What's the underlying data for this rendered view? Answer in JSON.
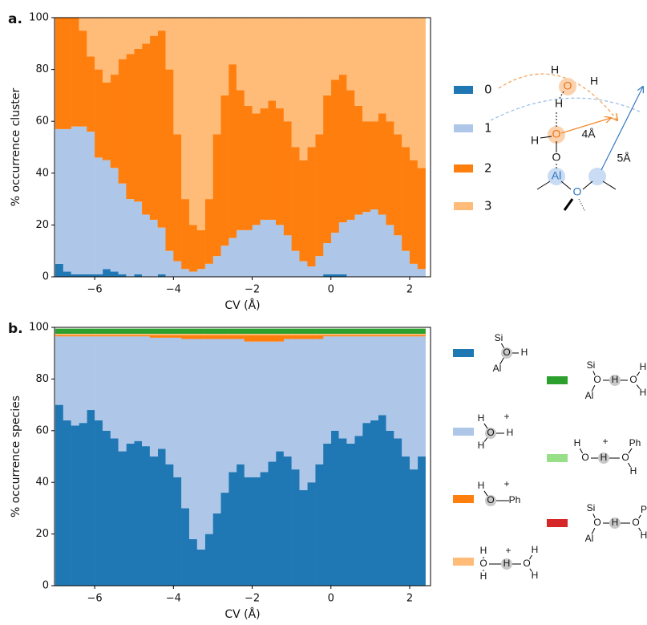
{
  "chart_data": [
    {
      "type": "stacked_bar",
      "panel_label": "a.",
      "ylabel": "% occurrence cluster",
      "xlabel": "CV (Å)",
      "x": [
        -6.9,
        -6.7,
        -6.5,
        -6.3,
        -6.1,
        -5.9,
        -5.7,
        -5.5,
        -5.3,
        -5.1,
        -4.9,
        -4.7,
        -4.5,
        -4.3,
        -4.1,
        -3.9,
        -3.7,
        -3.5,
        -3.3,
        -3.1,
        -2.9,
        -2.7,
        -2.5,
        -2.3,
        -2.1,
        -1.9,
        -1.7,
        -1.5,
        -1.3,
        -1.1,
        -0.9,
        -0.7,
        -0.5,
        -0.3,
        -0.1,
        0.1,
        0.3,
        0.5,
        0.7,
        0.9,
        1.1,
        1.3,
        1.5,
        1.7,
        1.9,
        2.1,
        2.3
      ],
      "xlim": [
        -7.02,
        2.53
      ],
      "ylim": [
        0,
        100
      ],
      "xticks": [
        {
          "value": -6,
          "label": "−6"
        },
        {
          "value": -4,
          "label": "−4"
        },
        {
          "value": -2,
          "label": "−2"
        },
        0,
        2
      ],
      "yticks": [
        0,
        20,
        40,
        60,
        80,
        100
      ],
      "series": [
        {
          "name": "0",
          "color": "#1f77b4",
          "values": [
            5,
            2,
            1,
            1,
            1,
            1,
            3,
            2,
            1,
            0,
            1,
            0,
            0,
            1,
            0,
            0,
            0,
            0,
            0,
            0,
            0,
            0,
            0,
            0,
            0,
            0,
            0,
            0,
            0,
            0,
            0,
            0,
            0,
            0,
            1,
            1,
            1,
            0,
            0,
            0,
            0,
            0,
            0,
            0,
            0,
            0,
            0
          ]
        },
        {
          "name": "1",
          "color": "#aec7e8",
          "values": [
            52,
            55,
            57,
            57,
            55,
            45,
            42,
            40,
            35,
            30,
            28,
            24,
            22,
            18,
            10,
            6,
            3,
            2,
            3,
            5,
            8,
            12,
            15,
            18,
            18,
            20,
            22,
            22,
            20,
            16,
            10,
            6,
            4,
            8,
            12,
            16,
            20,
            22,
            24,
            25,
            26,
            24,
            20,
            16,
            10,
            5,
            3
          ]
        },
        {
          "name": "2",
          "color": "#ff7f0e",
          "values": [
            43,
            43,
            42,
            37,
            29,
            34,
            30,
            36,
            48,
            56,
            59,
            66,
            71,
            76,
            70,
            49,
            27,
            18,
            15,
            25,
            47,
            58,
            67,
            54,
            48,
            43,
            43,
            46,
            45,
            44,
            40,
            39,
            46,
            47,
            57,
            59,
            57,
            50,
            42,
            35,
            34,
            39,
            40,
            39,
            40,
            40,
            39
          ]
        },
        {
          "name": "3",
          "color": "#ffbb78",
          "values": [
            0,
            0,
            0,
            5,
            15,
            20,
            25,
            22,
            16,
            14,
            12,
            10,
            7,
            5,
            20,
            45,
            70,
            80,
            82,
            70,
            45,
            30,
            18,
            28,
            34,
            37,
            35,
            32,
            35,
            40,
            50,
            55,
            50,
            45,
            30,
            24,
            22,
            28,
            34,
            40,
            40,
            37,
            40,
            45,
            50,
            55,
            58
          ]
        }
      ]
    },
    {
      "type": "stacked_bar",
      "panel_label": "b.",
      "ylabel": "% occurrence species",
      "xlabel": "CV (Å)",
      "x": [
        -6.9,
        -6.7,
        -6.5,
        -6.3,
        -6.1,
        -5.9,
        -5.7,
        -5.5,
        -5.3,
        -5.1,
        -4.9,
        -4.7,
        -4.5,
        -4.3,
        -4.1,
        -3.9,
        -3.7,
        -3.5,
        -3.3,
        -3.1,
        -2.9,
        -2.7,
        -2.5,
        -2.3,
        -2.1,
        -1.9,
        -1.7,
        -1.5,
        -1.3,
        -1.1,
        -0.9,
        -0.7,
        -0.5,
        -0.3,
        -0.1,
        0.1,
        0.3,
        0.5,
        0.7,
        0.9,
        1.1,
        1.3,
        1.5,
        1.7,
        1.9,
        2.1,
        2.3
      ],
      "xlim": [
        -7.02,
        2.53
      ],
      "ylim": [
        0,
        100
      ],
      "xticks": [
        {
          "value": -6,
          "label": "−6"
        },
        {
          "value": -4,
          "label": "−4"
        },
        {
          "value": -2,
          "label": "−2"
        },
        0,
        2
      ],
      "yticks": [
        0,
        20,
        40,
        60,
        80,
        100
      ],
      "series": [
        {
          "color": "#1f77b4",
          "structure": [
            "Si",
            "O",
            "H",
            "Al"
          ],
          "values": [
            70,
            64,
            62,
            63,
            68,
            64,
            60,
            57,
            52,
            55,
            56,
            54,
            50,
            53,
            47,
            42,
            30,
            18,
            14,
            20,
            28,
            36,
            44,
            47,
            42,
            42,
            44,
            48,
            52,
            50,
            45,
            37,
            40,
            47,
            55,
            60,
            57,
            55,
            58,
            63,
            64,
            66,
            60,
            57,
            50,
            45,
            50
          ]
        },
        {
          "color": "#aec7e8",
          "structure": [
            "H",
            "O",
            "H",
            "H",
            "+"
          ],
          "values": [
            26.5,
            32.5,
            34.5,
            33.5,
            28.5,
            32.5,
            36.5,
            39.5,
            44.5,
            41.5,
            40.5,
            42.5,
            46,
            43,
            49,
            54,
            65.5,
            77.5,
            81.5,
            75.5,
            67.5,
            59.5,
            51.5,
            48.5,
            52.5,
            52.5,
            50.5,
            46.5,
            42.5,
            45.5,
            50.5,
            58.5,
            55.5,
            48.5,
            41.5,
            36.5,
            39.5,
            41.5,
            38.5,
            33.5,
            32.5,
            30.5,
            36.5,
            39.5,
            46.5,
            51.5,
            46.5
          ]
        },
        {
          "color": "#ff7f0e",
          "structure": [
            "H",
            "O",
            "Ph",
            "+"
          ],
          "values": [
            0.5,
            0.5,
            0.5,
            0.5,
            0.5,
            0.5,
            0.5,
            0.5,
            0.5,
            0.5,
            0.5,
            0.5,
            1,
            1,
            1,
            1,
            1.5,
            1.5,
            1.5,
            1.5,
            1.5,
            1.5,
            1.5,
            1.5,
            2.5,
            2.5,
            2.5,
            2.5,
            2.5,
            1.5,
            1.5,
            1.5,
            1.5,
            1.5,
            0.5,
            0.5,
            0.5,
            0.5,
            0.5,
            0.5,
            0.5,
            0.5,
            0.5,
            0.5,
            0.5,
            0.5,
            0.5
          ]
        },
        {
          "color": "#ffbb78",
          "structure": [
            "H",
            "O",
            "H",
            "O",
            "H",
            "H",
            "+",
            "H"
          ],
          "values": [
            0.5,
            0.5,
            0.5,
            0.5,
            0.5,
            0.5,
            0.5,
            0.5,
            0.5,
            0.5,
            0.5,
            0.5,
            0.5,
            0.5,
            0.5,
            0.5,
            0.5,
            0.5,
            0.5,
            0.5,
            0.5,
            0.5,
            0.5,
            0.5,
            0.5,
            0.5,
            0.5,
            0.5,
            0.5,
            0.5,
            0.5,
            0.5,
            0.5,
            0.5,
            0.5,
            0.5,
            0.5,
            0.5,
            0.5,
            0.5,
            0.5,
            0.5,
            0.5,
            0.5,
            0.5,
            0.5,
            0.5
          ]
        },
        {
          "color": "#2ca02c",
          "structure": [
            "Si",
            "O",
            "H",
            "O",
            "H",
            "H",
            "Al"
          ],
          "values": [
            2,
            2,
            2,
            2,
            2,
            2,
            2,
            2,
            2,
            2,
            2,
            2,
            2,
            2,
            2,
            2,
            2,
            2,
            2,
            2,
            2,
            2,
            2,
            2,
            2,
            2,
            2,
            2,
            2,
            2,
            2,
            2,
            2,
            2,
            2,
            2,
            2,
            2,
            2,
            2,
            2,
            2,
            2,
            2,
            2,
            2,
            2
          ]
        },
        {
          "color": "#98df8a",
          "structure": [
            "H",
            "O",
            "H",
            "O",
            "Ph",
            "H",
            "+"
          ],
          "values": [
            0,
            0,
            0,
            0,
            0,
            0,
            0,
            0,
            0,
            0,
            0,
            0,
            0,
            0,
            0,
            0,
            0,
            0,
            0,
            0,
            0,
            0,
            0,
            0,
            0,
            0,
            0,
            0,
            0,
            0,
            0,
            0,
            0,
            0,
            0,
            0,
            0,
            0,
            0,
            0,
            0,
            0,
            0,
            0,
            0,
            0,
            0
          ]
        },
        {
          "color": "#d62728",
          "structure": [
            "Si",
            "O",
            "H",
            "O",
            "P",
            "H",
            "Al"
          ],
          "values": [
            0,
            0,
            0,
            0,
            0,
            0,
            0,
            0,
            0,
            0,
            0,
            0,
            0,
            0,
            0,
            0,
            0,
            0,
            0,
            0,
            0,
            0,
            0,
            0,
            0,
            0,
            0,
            0,
            0,
            0,
            0,
            0,
            0,
            0,
            0,
            0,
            0,
            0,
            0,
            0,
            0,
            0,
            0,
            0,
            0,
            0,
            0
          ]
        }
      ]
    }
  ],
  "diagram": {
    "labels": [
      "H",
      "O",
      "H",
      "H",
      "O",
      "H",
      "O",
      "Al",
      "O",
      "4Å",
      "5Å"
    ]
  }
}
